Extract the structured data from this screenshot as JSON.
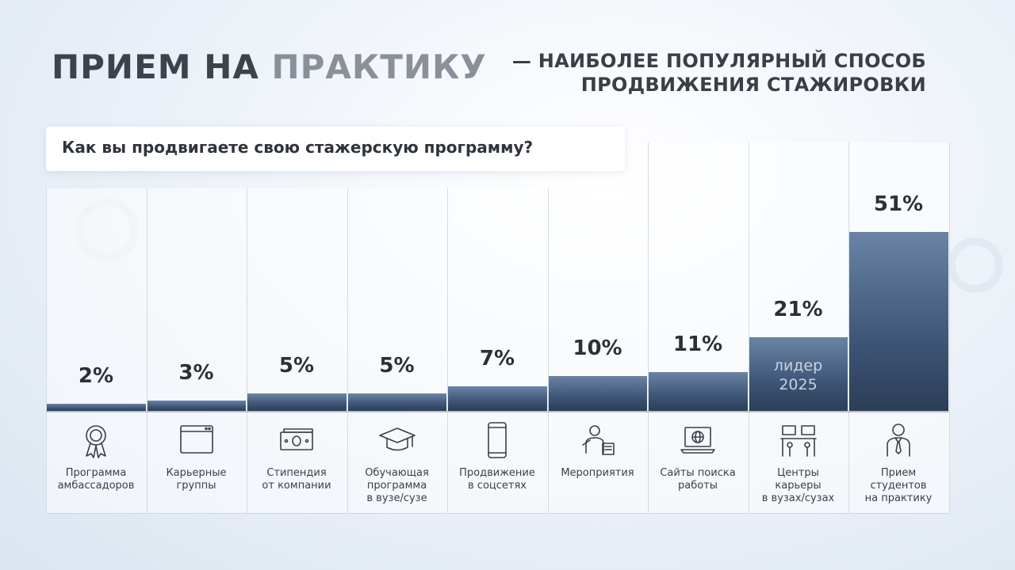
{
  "header": {
    "title_part1": "ПРИЕМ НА ",
    "title_part2": "ПРАКТИКУ",
    "subtitle_line1": "— НАИБОЛЕЕ ПОПУЛЯРНЫЙ СПОСОБ",
    "subtitle_line2": "ПРОДВИЖЕНИЯ СТАЖИРОВКИ",
    "question": "Как вы продвигаете свою стажерскую программу?"
  },
  "colors": {
    "bar_top": "#6a84a6",
    "bar_bottom": "#2c3e57",
    "title_dark": "#3e434b",
    "title_light": "#8a9099"
  },
  "chart_data": {
    "type": "bar",
    "title": "Как вы продвигаете свою стажерскую программу?",
    "categories": [
      "Программа\nамбассадоров",
      "Карьерные\nгруппы",
      "Стипендия\nот компании",
      "Обучающая\nпрограмма\nв вузе/сузе",
      "Продвижение\nв соцсетях",
      "Мероприятия",
      "Сайты поиска\nработы",
      "Центры\nкарьеры\nв вузах/сузах",
      "Прием\nстудентов\nна практику"
    ],
    "values": [
      2,
      3,
      5,
      5,
      7,
      10,
      11,
      21,
      51
    ],
    "value_labels": [
      "2%",
      "3%",
      "5%",
      "5%",
      "7%",
      "10%",
      "11%",
      "21%",
      "51%"
    ],
    "icons": [
      "medal-icon",
      "browser-window-icon",
      "money-icon",
      "graduation-cap-icon",
      "smartphone-icon",
      "presenter-icon",
      "laptop-globe-icon",
      "workstations-icon",
      "businessman-icon"
    ],
    "ylim": [
      0,
      55
    ],
    "annotations": [
      {
        "category_index": 7,
        "text_line1": "лидер",
        "text_line2": "2025"
      }
    ],
    "grid": false,
    "legend": "none"
  }
}
